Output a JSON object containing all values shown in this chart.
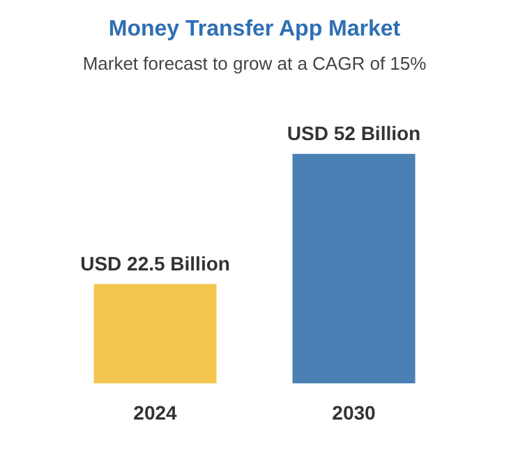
{
  "chart_data": {
    "type": "bar",
    "title": "Money Transfer App Market",
    "subtitle": "Market forecast to grow at a CAGR of 15%",
    "categories": [
      "2024",
      "2030"
    ],
    "values": [
      22.5,
      52
    ],
    "colors": [
      "#f3c74f",
      "#4a80b4"
    ],
    "value_labels": [
      "USD 22.5 Billion",
      "USD 52 Billion"
    ],
    "tick_labels": "x"
  }
}
